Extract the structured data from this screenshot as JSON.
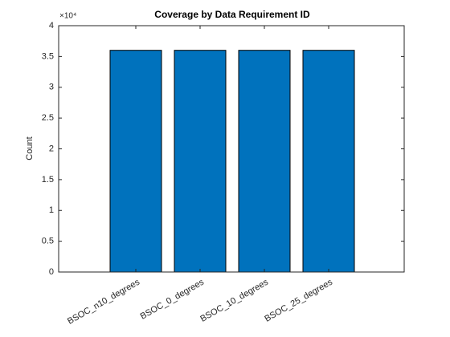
{
  "chart_data": {
    "type": "bar",
    "title": "Coverage by Data Requirement ID",
    "y_label": "Count",
    "y_exponent_label": "×10⁴",
    "categories": [
      "BSOC_n10_degrees",
      "BSOC_0_degrees",
      "BSOC_10_degrees",
      "BSOC_25_degrees"
    ],
    "values": [
      36000,
      36000,
      36000,
      36000
    ],
    "color": "#0072bd",
    "ylim": [
      0,
      40000
    ],
    "yticks": [
      0,
      {
        "value": 5000,
        "label": "0.5"
      },
      {
        "value": 10000,
        "label": "1"
      },
      {
        "value": 15000,
        "label": "1.5"
      },
      {
        "value": 20000,
        "label": "2"
      },
      {
        "value": 25000,
        "label": "2.5"
      },
      {
        "value": 30000,
        "label": "3"
      },
      {
        "value": 35000,
        "label": "3.5"
      },
      {
        "value": 40000,
        "label": "4"
      }
    ],
    "grid": false
  }
}
